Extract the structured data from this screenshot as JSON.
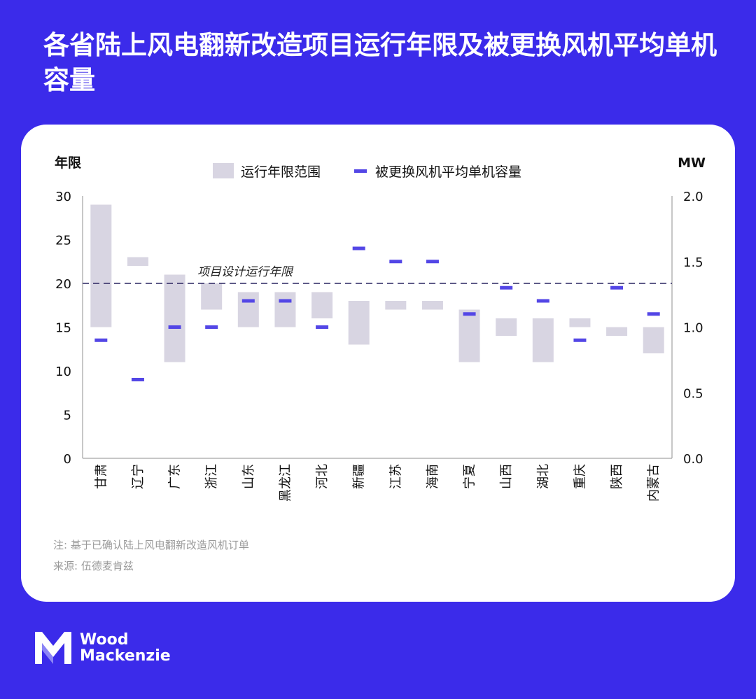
{
  "page": {
    "title": "各省陆上风电翻新改造项目运行年限及被更换风机平均单机容量"
  },
  "notes": {
    "note": "注: 基于已确认陆上风电翻新改造风机订单",
    "source": "来源: 伍德麦肯兹"
  },
  "logo": {
    "line1": "Wood",
    "line2": "Mackenzie"
  },
  "colors": {
    "background": "#3b2bea",
    "bar": "#d8d5e2",
    "marker": "#5346e6",
    "dashed": "#2a2560",
    "axis": "#8f8f8f"
  },
  "chart_data": {
    "type": "bar",
    "title": "各省陆上风电翻新改造项目运行年限及被更换风机平均单机容量",
    "ylabel_left": "年限",
    "ylabel_right": "MW",
    "ylim_left": [
      0,
      30
    ],
    "ylim_right": [
      0.0,
      2.0
    ],
    "yticks_left": [
      "0",
      "5",
      "10",
      "15",
      "20",
      "25",
      "30"
    ],
    "yticks_right": [
      "0.0",
      "0.5",
      "1.0",
      "1.5",
      "2.0"
    ],
    "legend": [
      "运行年限范围",
      "被更换风机平均单机容量"
    ],
    "legend_position": "top-center",
    "reference_line": {
      "value": 20,
      "label": "项目设计运行年限"
    },
    "categories": [
      "甘肃",
      "辽宁",
      "广东",
      "浙江",
      "山东",
      "黑龙江",
      "河北",
      "新疆",
      "江苏",
      "海南",
      "宁夏",
      "山西",
      "湖北",
      "重庆",
      "陕西",
      "内蒙古"
    ],
    "series": [
      {
        "name": "运行年限范围",
        "axis": "left",
        "ranges": [
          [
            15,
            29
          ],
          [
            22,
            23
          ],
          [
            11,
            21
          ],
          [
            17,
            20
          ],
          [
            15,
            19
          ],
          [
            15,
            19
          ],
          [
            16,
            19
          ],
          [
            13,
            18
          ],
          [
            17,
            18
          ],
          [
            17,
            18
          ],
          [
            11,
            17
          ],
          [
            14,
            16
          ],
          [
            11,
            16
          ],
          [
            15,
            16
          ],
          [
            14,
            15
          ],
          [
            12,
            15
          ]
        ]
      },
      {
        "name": "被更换风机平均单机容量",
        "axis": "right",
        "values": [
          0.9,
          0.6,
          1.0,
          1.0,
          1.2,
          1.2,
          1.0,
          1.6,
          1.5,
          1.5,
          1.1,
          1.3,
          1.2,
          0.9,
          1.3,
          1.1
        ]
      }
    ]
  }
}
